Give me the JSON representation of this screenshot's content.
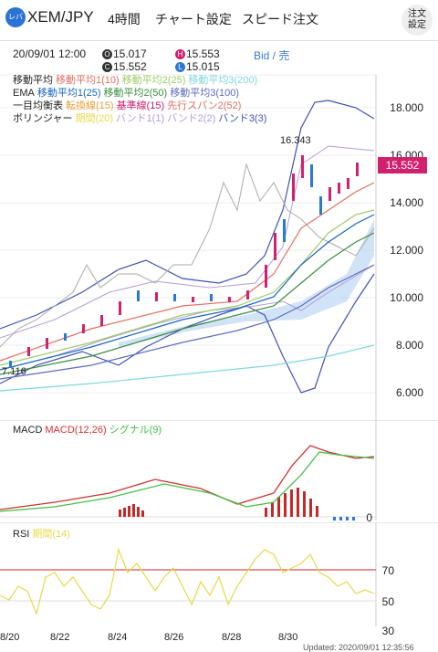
{
  "header": {
    "logo": "レバ",
    "pair": "XEM/JPY",
    "timeframe": "4時間",
    "chart_settings": "チャート設定",
    "speed_order": "スピード注文",
    "order_settings_l1": "注文",
    "order_settings_l2": "設定"
  },
  "info": {
    "datetime": "20/09/01 12:00",
    "open_label": "O",
    "open": "15.017",
    "high_label": "H",
    "high": "15.553",
    "close_label": "C",
    "close": "15.552",
    "low_label": "L",
    "low": "15.015",
    "side": "Bid / 売"
  },
  "legend": {
    "sma": {
      "title": "移動平均",
      "items": [
        "移動平均1(10)",
        "移動平均2(25)",
        "移動平均3(200)"
      ]
    },
    "ema": {
      "title": "EMA",
      "items": [
        "移動平均1(25)",
        "移動平均2(50)",
        "移動平均3(100)"
      ]
    },
    "ichimoku": {
      "title": "一目均衡表",
      "items": [
        "転換線(15)",
        "基準線(15)",
        "先行スパン2(52)"
      ]
    },
    "bollinger": {
      "title": "ボリンジャー",
      "items": [
        "期間(20)",
        "バンド1(1)",
        "バンド2(2)",
        "バンド3(3)"
      ]
    }
  },
  "price_axis": [
    "18.000",
    "16.000",
    "14.000",
    "12.000",
    "10.000",
    "8.000",
    "6.000"
  ],
  "current_price": "15.552",
  "high_annotation": "16.343",
  "low_annotation": "7.116",
  "macd": {
    "title": "MACD",
    "macd_label": "MACD(12,26)",
    "signal_label": "シグナル(9)",
    "axis": "0"
  },
  "rsi": {
    "title": "RSI",
    "period_label": "期間(14)",
    "axis": [
      "70",
      "50",
      "30"
    ]
  },
  "date_axis": [
    "8/20",
    "8/22",
    "8/24",
    "8/26",
    "8/28",
    "8/30"
  ],
  "footer": "Updated: 2020/09/01 12:35:56",
  "colors": {
    "up": "#d0206e",
    "down": "#2a7ad4",
    "sma1": "#e07060",
    "sma2": "#9ccc65",
    "sma3": "#7fd6e0",
    "ema1": "#1565c0",
    "ema2": "#388e3c",
    "ema3": "#5c6bc0",
    "boll": "#3f51b5",
    "boll_band": "#b39ddb",
    "rsi": "#e8d84a",
    "macd": "#d32f2f",
    "signal": "#43c043"
  }
}
